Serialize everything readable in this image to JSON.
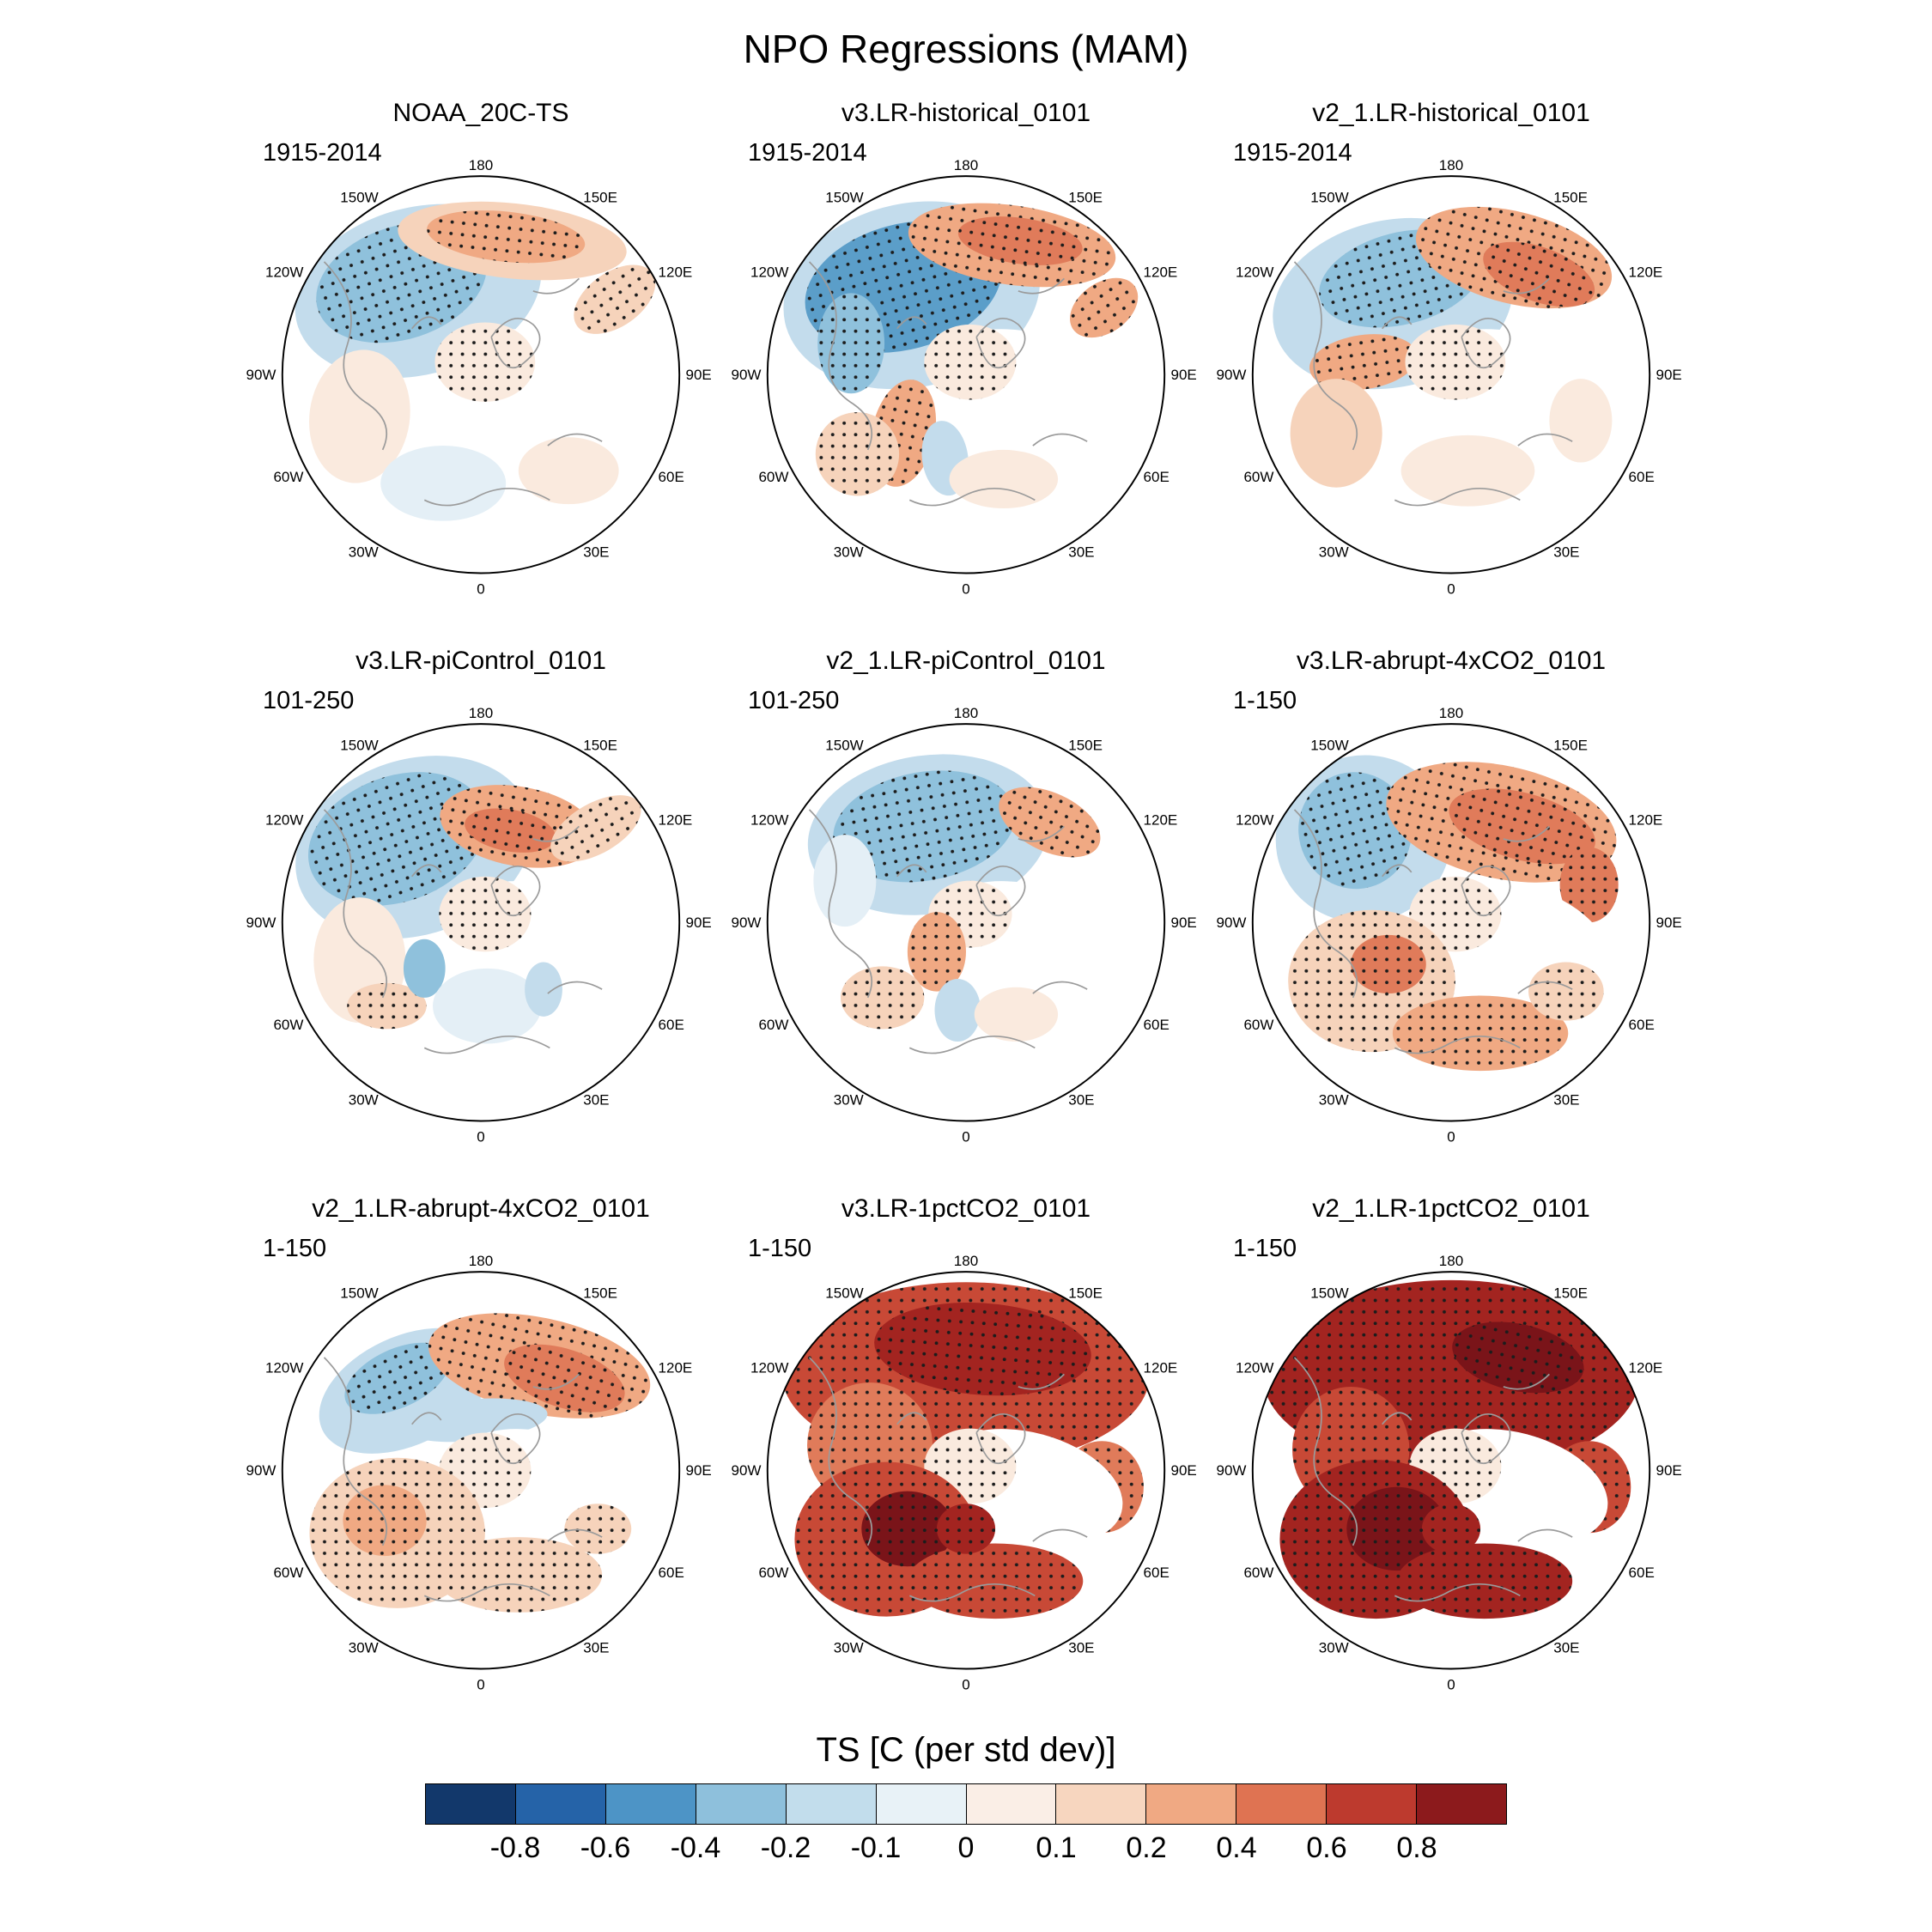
{
  "chart_data": {
    "type": "heatmap",
    "subtype": "north_polar_stereographic_regression_map_grid",
    "title": "NPO Regressions (MAM)",
    "grid": {
      "rows": 3,
      "cols": 3
    },
    "longitude_labels": [
      "180",
      "150E",
      "120E",
      "90E",
      "60E",
      "30E",
      "0",
      "30W",
      "60W",
      "90W",
      "120W",
      "150W"
    ],
    "colorbar": {
      "label": "TS [C (per std dev)]",
      "tick_labels": [
        "-0.8",
        "-0.6",
        "-0.4",
        "-0.2",
        "-0.1",
        "0",
        "0.1",
        "0.2",
        "0.4",
        "0.6",
        "0.8"
      ],
      "colors": [
        "#12386b",
        "#2563a8",
        "#4d94c6",
        "#8ec0dc",
        "#c2ddec",
        "#e8f2f7",
        "#faeee6",
        "#f7d6bf",
        "#f0a983",
        "#df7352",
        "#bd3a2e",
        "#8c1a1c"
      ]
    },
    "palette": {
      "b3": "#5b9ec9",
      "b2": "#8fc1dc",
      "b1": "#c3dcec",
      "b0": "#e4eff6",
      "w": "#ffffff",
      "r0": "#faeade",
      "r1": "#f6d3bb",
      "r2": "#f0a983",
      "r3": "#e07b5a",
      "r4": "#c84936",
      "r5": "#a32420",
      "r6": "#7a1419"
    },
    "blob_format": [
      "dx",
      "dy",
      "rx",
      "ry",
      "rotation_deg",
      "fill_palette_key",
      "stippled"
    ],
    "panels": [
      {
        "title": "NOAA_20C-TS",
        "period": "1915-2014",
        "blobs": [
          [
            -30,
            -40,
            60,
            40,
            -15,
            "b1",
            0
          ],
          [
            -38,
            -44,
            42,
            27,
            -18,
            "b2",
            1
          ],
          [
            15,
            -64,
            55,
            18,
            6,
            "r1",
            0
          ],
          [
            12,
            -66,
            38,
            12,
            6,
            "r2",
            1
          ],
          [
            64,
            -36,
            22,
            13,
            -35,
            "r1",
            1
          ],
          [
            30,
            6,
            46,
            26,
            15,
            "w",
            0
          ],
          [
            2,
            -6,
            24,
            19,
            0,
            "r0",
            1
          ],
          [
            -58,
            20,
            24,
            32,
            8,
            "r0",
            0
          ],
          [
            -18,
            52,
            30,
            18,
            0,
            "b0",
            0
          ],
          [
            42,
            46,
            24,
            16,
            0,
            "r0",
            0
          ]
        ]
      },
      {
        "title": "v3.LR-historical_0101",
        "period": "1915-2014",
        "blobs": [
          [
            -26,
            -38,
            62,
            44,
            -12,
            "b1",
            0
          ],
          [
            -30,
            -42,
            48,
            30,
            -15,
            "b3",
            1
          ],
          [
            -55,
            -15,
            16,
            24,
            0,
            "b2",
            1
          ],
          [
            22,
            -62,
            50,
            19,
            8,
            "r2",
            1
          ],
          [
            26,
            -64,
            30,
            11,
            8,
            "r3",
            1
          ],
          [
            66,
            -32,
            18,
            12,
            -35,
            "r2",
            1
          ],
          [
            30,
            6,
            46,
            26,
            15,
            "w",
            0
          ],
          [
            2,
            -6,
            22,
            18,
            0,
            "r0",
            1
          ],
          [
            -30,
            28,
            15,
            26,
            12,
            "r2",
            1
          ],
          [
            -52,
            38,
            20,
            20,
            0,
            "r1",
            1
          ],
          [
            -10,
            40,
            11,
            18,
            -8,
            "b1",
            0
          ],
          [
            18,
            50,
            26,
            14,
            0,
            "r0",
            0
          ]
        ]
      },
      {
        "title": "v2_1.LR-historical_0101",
        "period": "1915-2014",
        "blobs": [
          [
            -28,
            -34,
            58,
            40,
            -12,
            "b1",
            0
          ],
          [
            -24,
            -46,
            40,
            22,
            -14,
            "b2",
            1
          ],
          [
            30,
            -56,
            48,
            22,
            14,
            "r2",
            1
          ],
          [
            42,
            -48,
            28,
            13,
            20,
            "r3",
            1
          ],
          [
            -42,
            -6,
            26,
            13,
            -8,
            "r2",
            1
          ],
          [
            30,
            6,
            46,
            26,
            15,
            "w",
            0
          ],
          [
            2,
            -6,
            24,
            18,
            0,
            "r0",
            1
          ],
          [
            -55,
            28,
            22,
            26,
            0,
            "r1",
            0
          ],
          [
            8,
            46,
            32,
            17,
            0,
            "r0",
            0
          ],
          [
            62,
            22,
            15,
            20,
            0,
            "r0",
            0
          ]
        ]
      },
      {
        "title": "v3.LR-piControl_0101",
        "period": "101-250",
        "blobs": [
          [
            -32,
            -36,
            58,
            42,
            -18,
            "b1",
            0
          ],
          [
            -40,
            -40,
            44,
            30,
            -20,
            "b2",
            1
          ],
          [
            18,
            -46,
            38,
            19,
            10,
            "r2",
            1
          ],
          [
            14,
            -44,
            22,
            10,
            10,
            "r3",
            1
          ],
          [
            55,
            -45,
            24,
            12,
            -30,
            "r1",
            1
          ],
          [
            30,
            8,
            46,
            26,
            15,
            "w",
            0
          ],
          [
            2,
            -4,
            22,
            18,
            0,
            "r0",
            1
          ],
          [
            -58,
            18,
            22,
            30,
            0,
            "r0",
            0
          ],
          [
            -45,
            40,
            19,
            11,
            0,
            "r1",
            1
          ],
          [
            -27,
            22,
            10,
            14,
            0,
            "b2",
            0
          ],
          [
            3,
            40,
            26,
            18,
            0,
            "b0",
            0
          ],
          [
            30,
            32,
            9,
            13,
            0,
            "b1",
            0
          ]
        ]
      },
      {
        "title": "v2_1.LR-piControl_0101",
        "period": "101-250",
        "blobs": [
          [
            -18,
            -42,
            58,
            38,
            -8,
            "b1",
            0
          ],
          [
            -20,
            -46,
            44,
            26,
            -10,
            "b2",
            1
          ],
          [
            40,
            -48,
            26,
            14,
            25,
            "r2",
            1
          ],
          [
            -58,
            -20,
            15,
            22,
            0,
            "b0",
            0
          ],
          [
            30,
            8,
            46,
            26,
            15,
            "w",
            0
          ],
          [
            2,
            -4,
            20,
            16,
            0,
            "r0",
            1
          ],
          [
            -14,
            14,
            14,
            19,
            0,
            "r2",
            1
          ],
          [
            -40,
            36,
            20,
            15,
            0,
            "r1",
            1
          ],
          [
            -4,
            42,
            11,
            15,
            0,
            "b1",
            0
          ],
          [
            24,
            44,
            20,
            13,
            0,
            "r0",
            0
          ]
        ]
      },
      {
        "title": "v3.LR-abrupt-4xCO2_0101",
        "period": "1-150",
        "blobs": [
          [
            -42,
            -40,
            42,
            40,
            -10,
            "b1",
            0
          ],
          [
            -46,
            -44,
            27,
            28,
            -15,
            "b2",
            1
          ],
          [
            24,
            -48,
            56,
            27,
            12,
            "r2",
            1
          ],
          [
            34,
            -46,
            36,
            16,
            15,
            "r3",
            1
          ],
          [
            66,
            -18,
            14,
            18,
            0,
            "r3",
            1
          ],
          [
            30,
            8,
            46,
            26,
            15,
            "w",
            0
          ],
          [
            2,
            -4,
            22,
            18,
            0,
            "r0",
            1
          ],
          [
            -38,
            28,
            40,
            34,
            0,
            "r1",
            1
          ],
          [
            -30,
            20,
            18,
            14,
            0,
            "r3",
            1
          ],
          [
            14,
            53,
            42,
            18,
            0,
            "r2",
            1
          ],
          [
            55,
            33,
            18,
            14,
            0,
            "r1",
            1
          ]
        ]
      },
      {
        "title": "v2_1.LR-abrupt-4xCO2_0101",
        "period": "1-150",
        "blobs": [
          [
            -36,
            -38,
            44,
            26,
            -25,
            "b1",
            0
          ],
          [
            -40,
            -44,
            27,
            14,
            -25,
            "b2",
            1
          ],
          [
            28,
            -50,
            54,
            23,
            12,
            "r2",
            1
          ],
          [
            40,
            -44,
            30,
            14,
            18,
            "r3",
            1
          ],
          [
            -4,
            -24,
            36,
            10,
            -5,
            "b1",
            0
          ],
          [
            30,
            8,
            46,
            26,
            15,
            "w",
            0
          ],
          [
            2,
            0,
            22,
            18,
            0,
            "r0",
            1
          ],
          [
            -40,
            30,
            42,
            36,
            0,
            "r1",
            1
          ],
          [
            -46,
            24,
            20,
            17,
            0,
            "r2",
            1
          ],
          [
            18,
            50,
            40,
            18,
            0,
            "r1",
            1
          ],
          [
            56,
            28,
            16,
            12,
            0,
            "r1",
            1
          ]
        ]
      },
      {
        "title": "v3.LR-1pctCO2_0101",
        "period": "1-150",
        "blobs": [
          [
            0,
            -46,
            88,
            44,
            0,
            "r4",
            1
          ],
          [
            8,
            -58,
            52,
            22,
            4,
            "r5",
            1
          ],
          [
            -46,
            -12,
            30,
            30,
            0,
            "r3",
            1
          ],
          [
            65,
            8,
            20,
            22,
            0,
            "r3",
            1
          ],
          [
            30,
            8,
            46,
            26,
            15,
            "w",
            0
          ],
          [
            2,
            -2,
            22,
            18,
            0,
            "r0",
            1
          ],
          [
            -38,
            33,
            44,
            37,
            0,
            "r4",
            1
          ],
          [
            -28,
            28,
            22,
            18,
            0,
            "r6",
            1
          ],
          [
            14,
            53,
            42,
            18,
            0,
            "r4",
            1
          ],
          [
            0,
            28,
            14,
            12,
            0,
            "r5",
            1
          ]
        ]
      },
      {
        "title": "v2_1.LR-1pctCO2_0101",
        "period": "1-150",
        "blobs": [
          [
            0,
            -45,
            90,
            46,
            0,
            "r5",
            1
          ],
          [
            32,
            -54,
            32,
            16,
            12,
            "r6",
            1
          ],
          [
            -48,
            -10,
            28,
            30,
            0,
            "r4",
            1
          ],
          [
            66,
            8,
            20,
            22,
            0,
            "r4",
            1
          ],
          [
            30,
            8,
            46,
            26,
            15,
            "w",
            0
          ],
          [
            2,
            -2,
            22,
            18,
            0,
            "r0",
            1
          ],
          [
            -36,
            33,
            46,
            38,
            0,
            "r5",
            1
          ],
          [
            -26,
            28,
            24,
            20,
            0,
            "r6",
            1
          ],
          [
            16,
            53,
            42,
            18,
            0,
            "r5",
            1
          ],
          [
            0,
            28,
            14,
            12,
            0,
            "r5",
            1
          ]
        ]
      }
    ]
  }
}
